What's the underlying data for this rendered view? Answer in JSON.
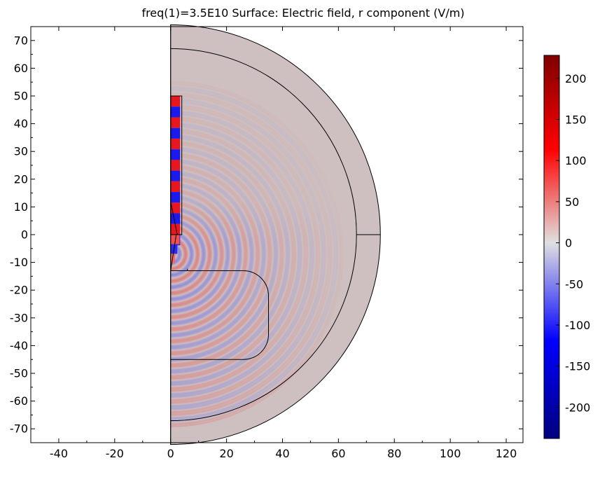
{
  "chart_data": {
    "type": "heatmap",
    "title": "freq(1)=3.5E10   Surface: Electric field, r component (V/m)",
    "xlabel": "",
    "ylabel": "",
    "xlim": [
      -50,
      126
    ],
    "ylim": [
      -75,
      75
    ],
    "x_ticks": [
      -40,
      -20,
      0,
      20,
      40,
      60,
      80,
      100,
      120
    ],
    "y_ticks": [
      70,
      60,
      50,
      40,
      30,
      20,
      10,
      0,
      -10,
      -20,
      -30,
      -40,
      -50,
      -60,
      -70
    ],
    "colorbar": {
      "min": -238,
      "max": 228,
      "ticks": [
        200,
        150,
        100,
        50,
        0,
        -50,
        -100,
        -150,
        -200
      ],
      "colormap": [
        "#00007f",
        "#0000ff",
        "#e0e0e0",
        "#ff0000",
        "#7f0000"
      ]
    },
    "background_field_color": "#cec0c0",
    "geometry": {
      "outer_radius": 75,
      "inner_radius": 66.5,
      "antenna_top": 50,
      "antenna_width": 4,
      "feed_y": -13,
      "rounded_box": {
        "x_max": 35,
        "y_top": -13,
        "y_bottom": -45,
        "corner_r": 9
      }
    }
  }
}
